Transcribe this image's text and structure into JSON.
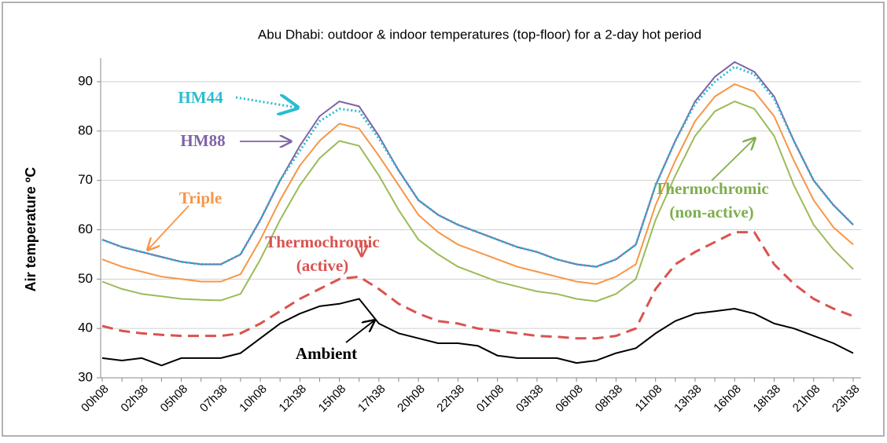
{
  "chart_data": {
    "type": "line",
    "title": "Abu Dhabi: outdoor & indoor temperatures (top-floor) for a 2-day hot period",
    "y_label": "Air temperature ºC",
    "categories": [
      "00h08",
      null,
      "02h38",
      null,
      "05h08",
      null,
      "07h38",
      null,
      "10h08",
      null,
      "12h38",
      null,
      "15h08",
      null,
      "17h38",
      null,
      "20h08",
      null,
      "22h38",
      null,
      "01h08",
      null,
      "03h38",
      null,
      "06h08",
      null,
      "08h38",
      null,
      "11h08",
      null,
      "13h38",
      null,
      "16h08",
      null,
      "18h38",
      null,
      "21h08",
      null,
      "23h38"
    ],
    "ylim": [
      30,
      90
    ],
    "yticks": [
      30,
      40,
      50,
      60,
      70,
      80,
      90
    ],
    "grid": true,
    "series": [
      {
        "color": "#7f63a5",
        "style": "solid",
        "values": [
          58,
          56.5,
          55.5,
          54.5,
          53.5,
          53,
          53,
          55,
          62,
          70,
          77,
          83,
          86,
          85,
          79,
          72,
          66,
          63,
          61,
          59.5,
          58,
          56.5,
          55.5,
          54,
          53,
          52.5,
          54,
          57,
          69,
          78,
          86,
          91,
          94,
          92,
          87,
          78,
          70,
          65,
          61
        ]
      },
      {
        "color": "#2bbcd0",
        "style": "dotted",
        "values": [
          58,
          56.5,
          55.5,
          54.5,
          53.5,
          53,
          53,
          55,
          62,
          70,
          76,
          82,
          84.5,
          84,
          78.5,
          72,
          66,
          63,
          61,
          59.5,
          58,
          56.5,
          55.5,
          54,
          53,
          52.5,
          54,
          57,
          69,
          78,
          85.5,
          90,
          93,
          91.5,
          86.5,
          78,
          70,
          65,
          61
        ]
      },
      {
        "color": "#f79646",
        "style": "solid",
        "values": [
          54,
          52.5,
          51.5,
          50.5,
          50,
          49.5,
          49.5,
          51,
          58,
          66,
          73,
          78,
          81.5,
          80.5,
          75,
          69,
          63,
          59.5,
          57,
          55.5,
          54,
          52.5,
          51.5,
          50.5,
          49.5,
          49,
          50.5,
          53,
          65,
          74,
          82,
          87,
          89.5,
          88,
          83,
          74,
          66,
          60.5,
          57
        ]
      },
      {
        "color": "#9bbb59",
        "style": "solid",
        "values": [
          49.5,
          48,
          47,
          46.5,
          46,
          45.8,
          45.7,
          47,
          54,
          62,
          69,
          74.5,
          78,
          77,
          71,
          64,
          58,
          55,
          52.5,
          51,
          49.5,
          48.5,
          47.5,
          47,
          46,
          45.5,
          47,
          50,
          62,
          71,
          79,
          84,
          86,
          84.5,
          79,
          69,
          61,
          56,
          52
        ]
      },
      {
        "color": "#d9534f",
        "style": "dashed",
        "values": [
          40.5,
          39.5,
          39,
          38.7,
          38.5,
          38.5,
          38.5,
          39,
          41,
          43.5,
          46,
          48,
          50,
          50.5,
          48,
          45,
          43,
          41.5,
          41,
          40,
          39.5,
          39,
          38.5,
          38.3,
          38,
          38,
          38.5,
          40,
          48,
          53,
          55.5,
          57.5,
          59.5,
          59.5,
          53,
          49,
          46,
          44,
          42.5
        ]
      },
      {
        "color": "#000000",
        "style": "solid",
        "values": [
          34,
          33.5,
          34,
          32.5,
          34,
          34,
          34,
          35,
          38,
          41,
          43,
          44.5,
          45,
          46,
          41,
          39,
          38,
          37,
          37,
          36.5,
          34.5,
          34,
          34,
          34,
          33,
          33.5,
          35,
          36,
          39,
          41.5,
          43,
          43.5,
          44,
          43,
          41,
          40,
          38.5,
          37,
          35
        ]
      }
    ],
    "annotations": [
      {
        "lines": [
          "HM44"
        ],
        "color": "#2bbcd0"
      },
      {
        "lines": [
          "HM88"
        ],
        "color": "#7f63a5"
      },
      {
        "lines": [
          "Triple"
        ],
        "color": "#f79646"
      },
      {
        "lines": [
          "Thermochromic",
          "(active)"
        ],
        "color": "#d9534f"
      },
      {
        "lines": [
          "Thermochromic",
          "(non-active)"
        ],
        "color": "#7fae4e"
      },
      {
        "lines": [
          "Ambient"
        ],
        "color": "#000000"
      }
    ]
  }
}
